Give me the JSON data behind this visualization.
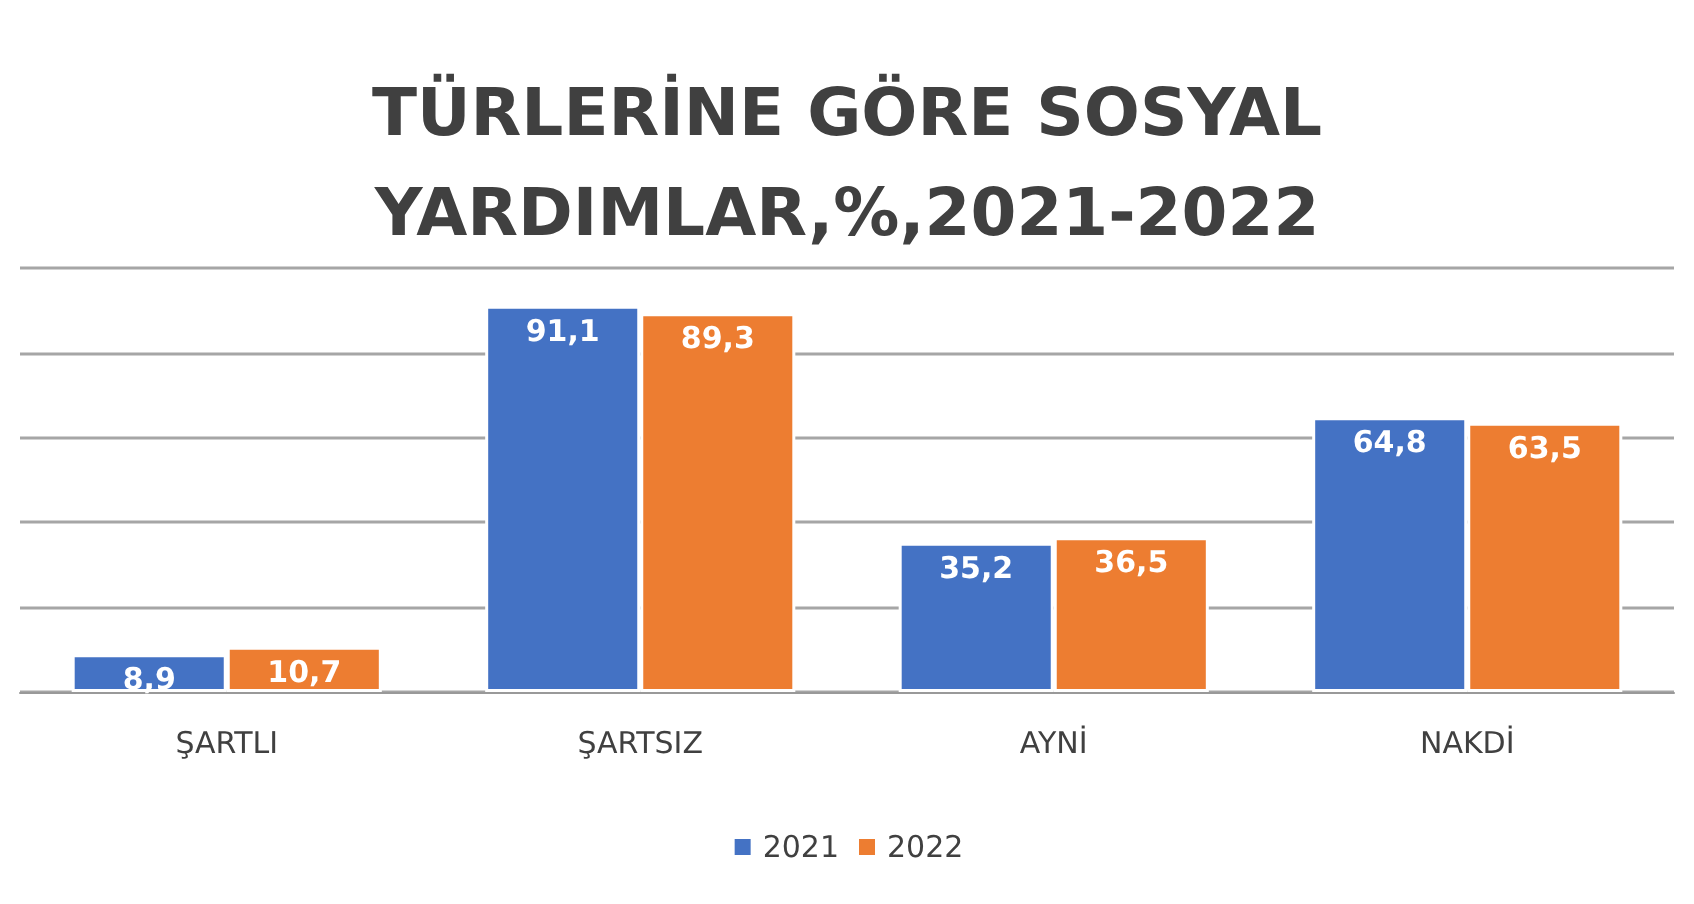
{
  "chart_data": {
    "type": "bar",
    "title": "TÜRLERİNE GÖRE SOSYAL\nYARDIMLAR,%,2021-2022",
    "categories": [
      "ŞARTLI",
      "ŞARTSIZ",
      "AYNİ",
      "NAKDİ"
    ],
    "series": [
      {
        "name": "2021",
        "color": "#4472c4",
        "values": [
          8.9,
          91.1,
          35.2,
          64.8
        ],
        "value_labels": [
          "8,9",
          "91,1",
          "35,2",
          "64,8"
        ]
      },
      {
        "name": "2022",
        "color": "#ed7d31",
        "values": [
          10.7,
          89.3,
          36.5,
          63.5
        ],
        "value_labels": [
          "10,7",
          "89,3",
          "36,5",
          "63,5"
        ]
      }
    ],
    "tick_labels": "x",
    "grid": "y",
    "legend": "bottom"
  }
}
